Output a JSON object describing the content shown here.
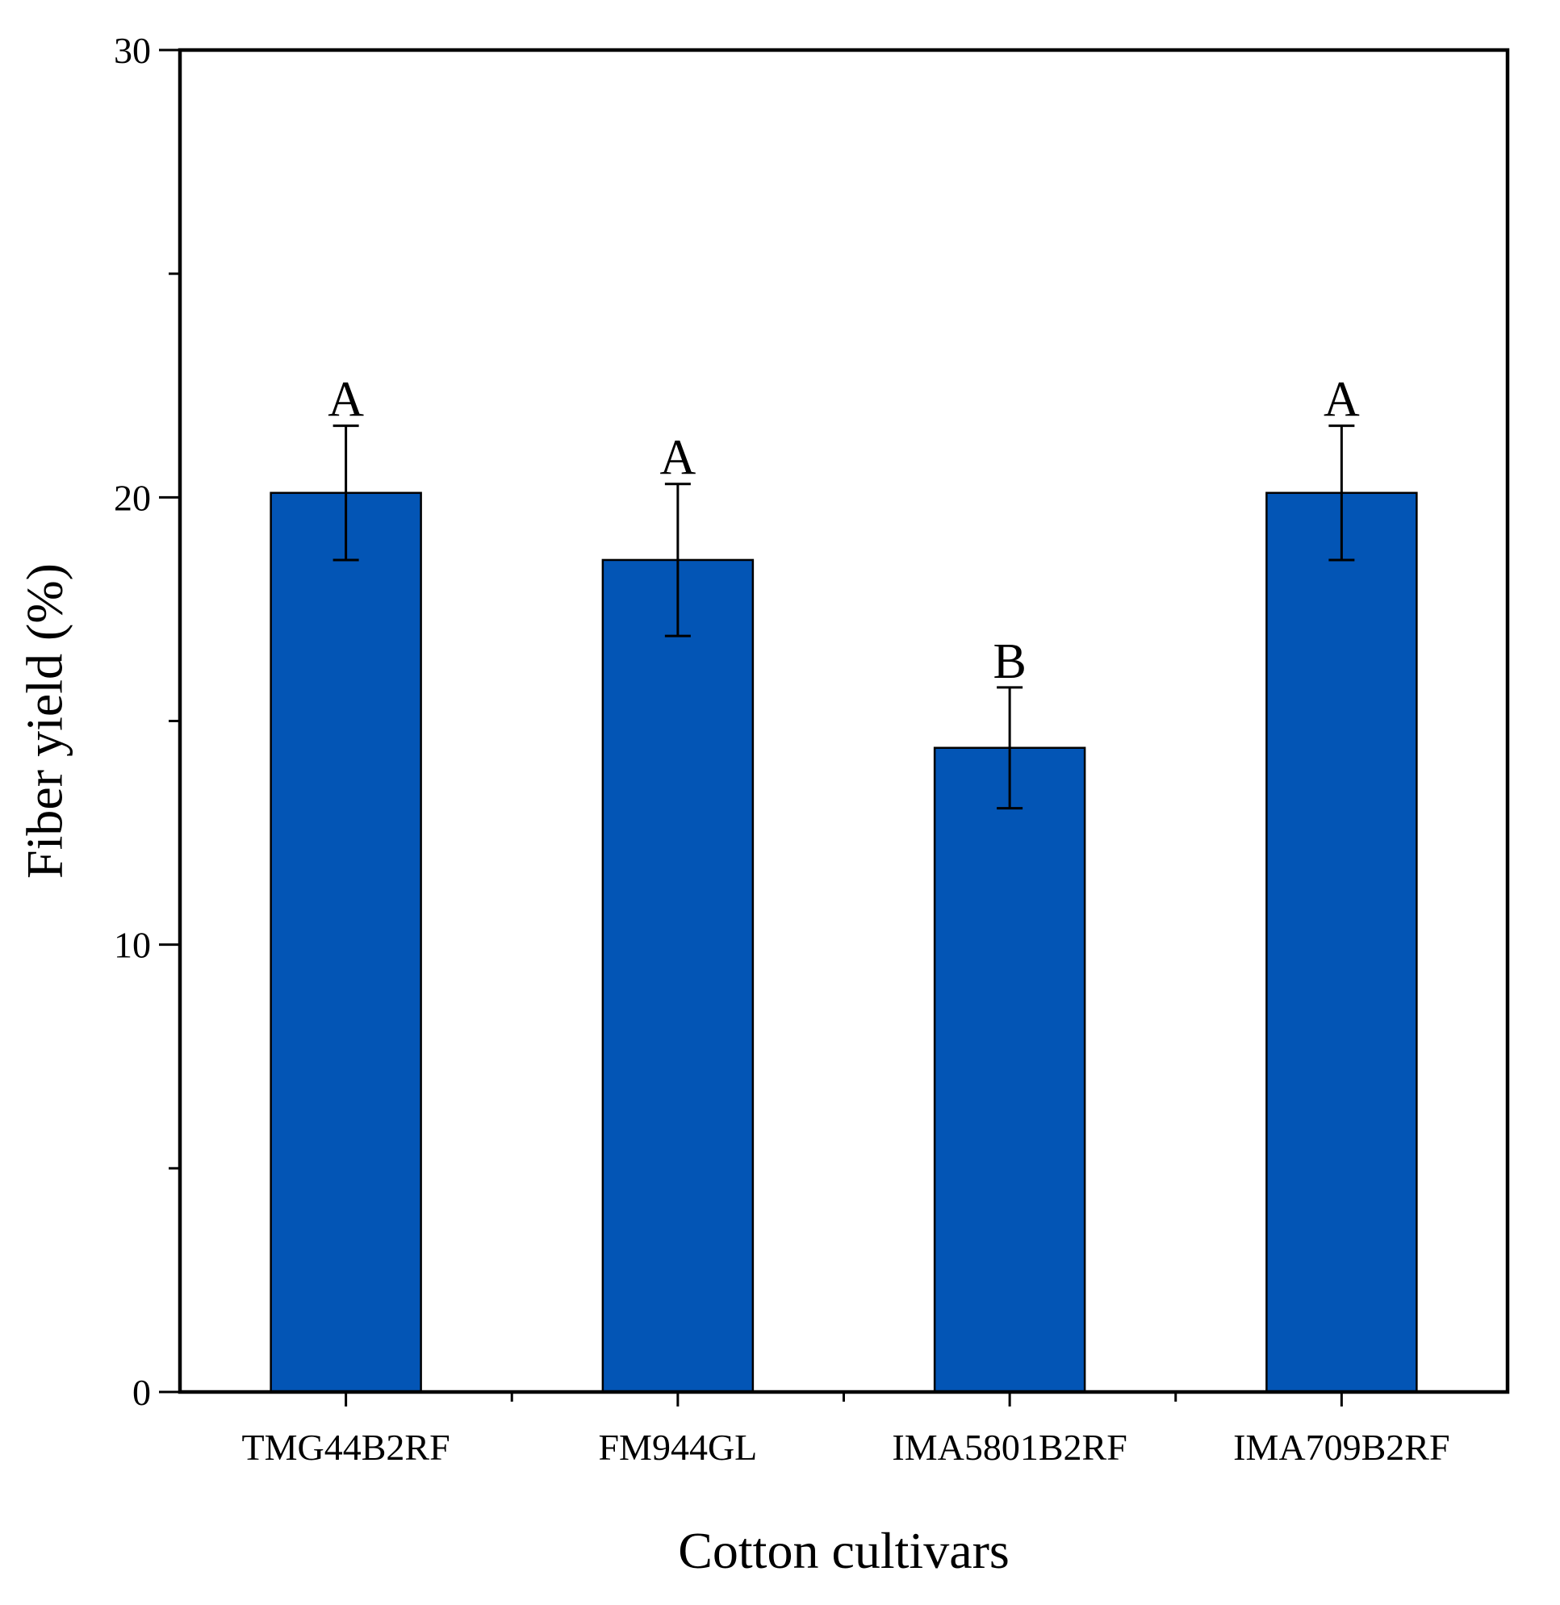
{
  "chart_data": {
    "type": "bar",
    "title": "",
    "xlabel": "Cotton cultivars",
    "ylabel": "Fiber yield (%)",
    "ylim": [
      0,
      30
    ],
    "yticks": [
      0,
      10,
      20,
      30
    ],
    "ytick_labels": [
      "0",
      "10",
      "20",
      "30"
    ],
    "yminor_ticks": [
      5,
      15,
      25
    ],
    "grid": false,
    "categories": [
      "TMG44B2RF",
      "FM944GL",
      "IMA5801B2RF",
      "IMA709B2RF"
    ],
    "series": [
      {
        "name": "Fiber yield",
        "values": [
          20.1,
          18.6,
          14.4,
          20.1
        ],
        "errors": [
          1.5,
          1.7,
          1.35,
          1.5
        ],
        "significance": [
          "A",
          "A",
          "B",
          "A"
        ]
      }
    ],
    "colors": {
      "bar": "#0355b5",
      "axis": "#000000"
    }
  }
}
